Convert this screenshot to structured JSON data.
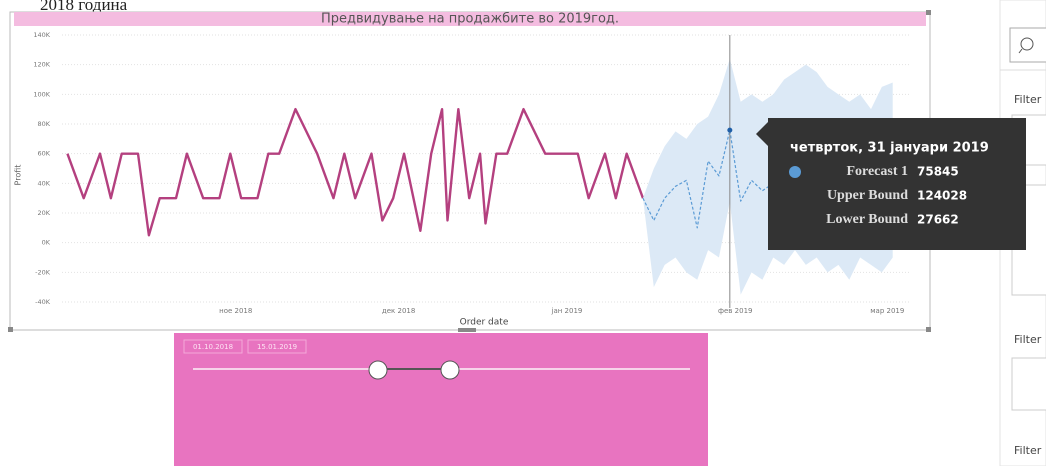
{
  "header_text": "2018 година",
  "chart_data": {
    "type": "line",
    "title": "Предвидување на продажбите во 2019год.",
    "xlabel": "Order date",
    "ylabel": "Profit",
    "xlim": [
      "2018-09-30",
      "2019-03-05"
    ],
    "xticks": [
      {
        "value": "2018-11-01",
        "label": "ное 2018"
      },
      {
        "value": "2018-12-01",
        "label": "дек 2018"
      },
      {
        "value": "2019-01-01",
        "label": "јан 2019"
      },
      {
        "value": "2019-02-01",
        "label": "фев 2019"
      },
      {
        "value": "2019-03-01",
        "label": "мар 2019"
      }
    ],
    "ylim": [
      -40000,
      140000
    ],
    "yticks": [
      {
        "value": -40000,
        "label": "-40K"
      },
      {
        "value": -20000,
        "label": "-20K"
      },
      {
        "value": 0,
        "label": "0K"
      },
      {
        "value": 20000,
        "label": "20K"
      },
      {
        "value": 40000,
        "label": "40K"
      },
      {
        "value": 60000,
        "label": "60K"
      },
      {
        "value": 80000,
        "label": "80K"
      },
      {
        "value": 100000,
        "label": "100K"
      },
      {
        "value": 120000,
        "label": "120K"
      },
      {
        "value": 140000,
        "label": "140K"
      }
    ],
    "grid": true,
    "series": [
      {
        "color": "#b4407f",
        "x": [
          "2018-10-01",
          "2018-10-04",
          "2018-10-07",
          "2018-10-09",
          "2018-10-11",
          "2018-10-14",
          "2018-10-16",
          "2018-10-18",
          "2018-10-21",
          "2018-10-23",
          "2018-10-26",
          "2018-10-29",
          "2018-10-31",
          "2018-11-02",
          "2018-11-05",
          "2018-11-07",
          "2018-11-09",
          "2018-11-12",
          "2018-11-16",
          "2018-11-19",
          "2018-11-21",
          "2018-11-23",
          "2018-11-26",
          "2018-11-28",
          "2018-11-30",
          "2018-12-02",
          "2018-12-05",
          "2018-12-07",
          "2018-12-09",
          "2018-12-10",
          "2018-12-12",
          "2018-12-14",
          "2018-12-16",
          "2018-12-17",
          "2018-12-19",
          "2018-12-21",
          "2018-12-24",
          "2018-12-28",
          "2019-01-03",
          "2019-01-05",
          "2019-01-08",
          "2019-01-10",
          "2019-01-12",
          "2019-01-15"
        ],
        "values": [
          60000,
          30000,
          60000,
          30000,
          60000,
          60000,
          5000,
          30000,
          30000,
          60000,
          30000,
          30000,
          60000,
          30000,
          30000,
          60000,
          60000,
          90000,
          60000,
          30000,
          60000,
          30000,
          60000,
          15000,
          30000,
          60000,
          8000,
          60000,
          90000,
          15000,
          90000,
          30000,
          60000,
          13000,
          60000,
          60000,
          90000,
          60000,
          60000,
          30000,
          60000,
          30000,
          60000,
          30000
        ]
      },
      {
        "name": "Forecast 1",
        "color": "#5b9bd5",
        "dashed": true,
        "band_color": "#dce9f6",
        "upper_name": "Upper Bound",
        "lower_name": "Lower Bound",
        "x": [
          "2019-01-15",
          "2019-01-17",
          "2019-01-19",
          "2019-01-21",
          "2019-01-23",
          "2019-01-25",
          "2019-01-27",
          "2019-01-29",
          "2019-01-31",
          "2019-02-02",
          "2019-02-04",
          "2019-02-06",
          "2019-02-08",
          "2019-02-10",
          "2019-02-12",
          "2019-02-14",
          "2019-02-16",
          "2019-02-18",
          "2019-02-20",
          "2019-02-22",
          "2019-02-24",
          "2019-02-26",
          "2019-02-28",
          "2019-03-02"
        ],
        "values": [
          30000,
          15000,
          30000,
          38000,
          42000,
          10000,
          55000,
          45000,
          75845,
          28000,
          42000,
          35000,
          40000,
          45000,
          40000,
          45000,
          42000,
          40000,
          45000,
          40000,
          45000,
          42000,
          45000,
          40000
        ],
        "upper": [
          30000,
          50000,
          65000,
          75000,
          70000,
          80000,
          85000,
          100000,
          124028,
          95000,
          100000,
          95000,
          100000,
          110000,
          115000,
          120000,
          115000,
          105000,
          100000,
          95000,
          100000,
          90000,
          105000,
          108000
        ],
        "lower": [
          30000,
          -30000,
          -15000,
          -10000,
          -20000,
          -25000,
          -5000,
          -10000,
          27662,
          -35000,
          -20000,
          -25000,
          -10000,
          -15000,
          -5000,
          -15000,
          -10000,
          -20000,
          -15000,
          -25000,
          -10000,
          -15000,
          -20000,
          -10000
        ]
      }
    ],
    "tooltip": {
      "title": "четврток, 31 јануари 2019",
      "x": "2019-01-31"
    }
  },
  "slicer": {
    "start": "01.10.2018",
    "end": "15.01.2019"
  },
  "filters_pane": {
    "labels": [
      "Filter",
      "Filter",
      "Filter"
    ]
  }
}
